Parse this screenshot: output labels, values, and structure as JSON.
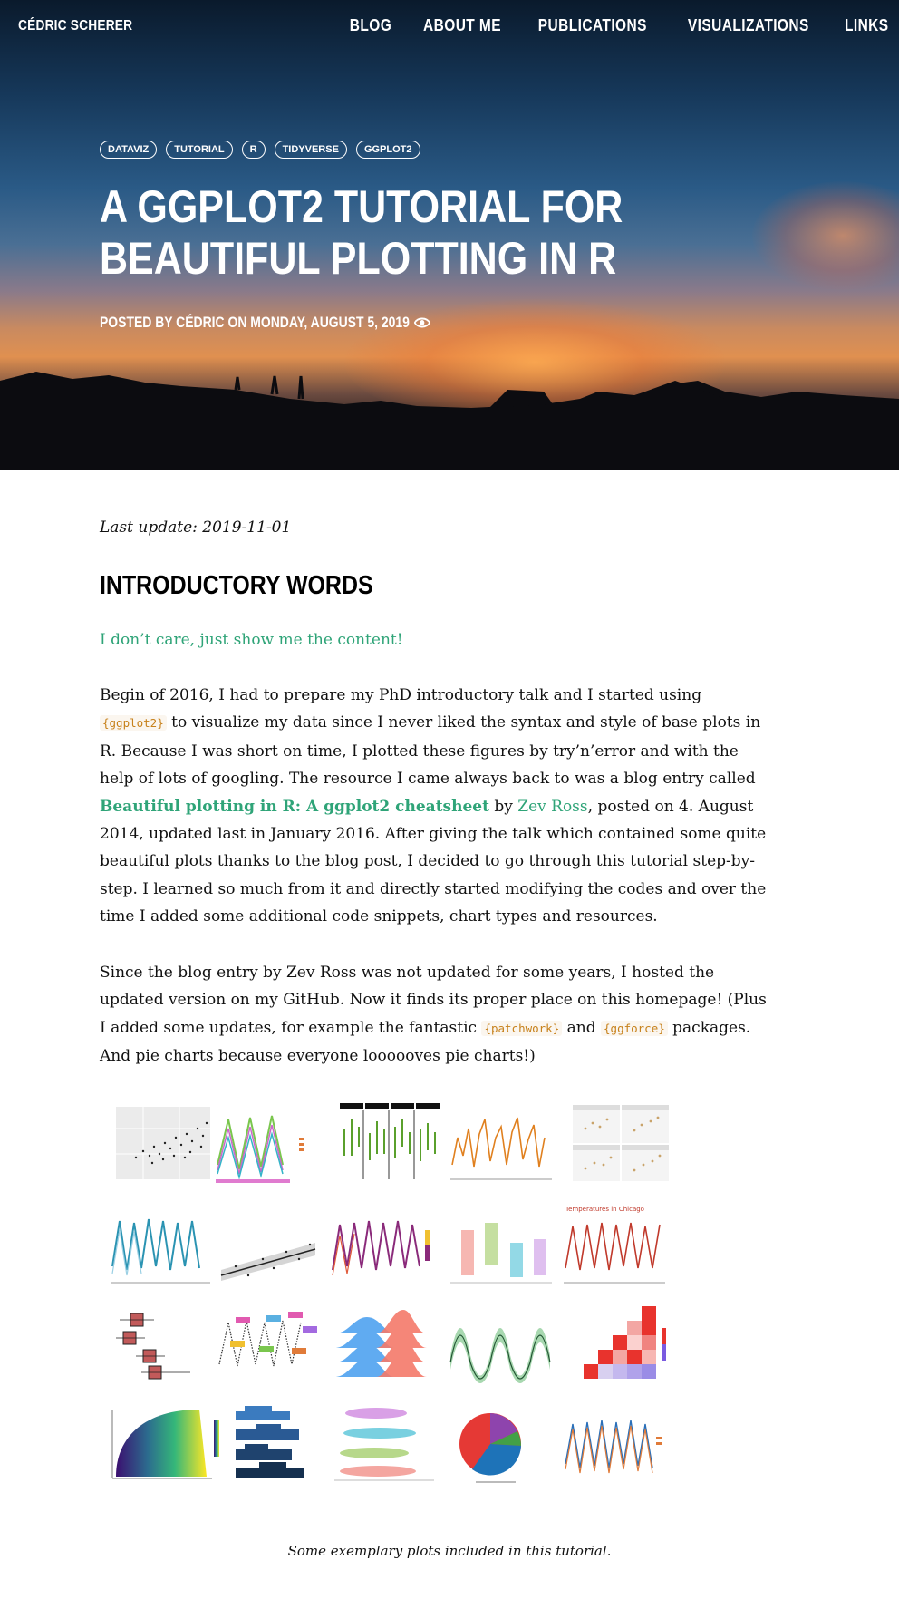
{
  "nav": {
    "brand": "CÉDRIC SCHERER",
    "items": [
      "BLOG",
      "ABOUT ME",
      "PUBLICATIONS",
      "VISUALIZATIONS",
      "LINKS"
    ]
  },
  "post": {
    "tags": [
      "DATAVIZ",
      "TUTORIAL",
      "R",
      "TIDYVERSE",
      "GGPLOT2"
    ],
    "title": "A GGPLOT2 TUTORIAL FOR BEAUTIFUL PLOTTING IN R",
    "meta": "POSTED BY CÉDRIC ON MONDAY, AUGUST 5, 2019",
    "views_icon": "eye-icon"
  },
  "content": {
    "update": "Last update: 2019-11-01",
    "heading": "INTRODUCTORY WORDS",
    "skip_link": "I don’t care, just show me the content!",
    "p1": {
      "t1": "Begin of 2016, I had to prepare my PhD introductory talk and I started using ",
      "code1": "{ggplot2}",
      "t2": " to visualize my data since I never liked the syntax and style of base plots in R. Because I was short on time, I plotted these figures by try’n’error and with the help of lots of googling. The resource I came always back to was a blog entry called ",
      "link1": "Beautiful plotting in R: A ggplot2 cheatsheet",
      "t3": " by ",
      "link2": "Zev Ross",
      "t4": ", posted on 4. August 2014, updated last in January 2016. After giving the talk which contained some quite beautiful plots thanks to the blog post, I decided to go through this tutorial step-by-step. I learned so much from it and directly started modifying the codes and over the time I added some additional code snippets, chart types and resources."
    },
    "p2": {
      "t1": "Since the blog entry by Zev Ross was not updated for some years, I hosted the updated version on my GitHub. Now it finds its proper place on this homepage! (Plus I added some updates, for example the fantastic ",
      "code1": "{patchwork}",
      "t2": " and ",
      "code2": "{ggforce}",
      "t3": " packages. And pie charts because everyone loooooves pie charts!)"
    },
    "caption": "Some exemplary plots included in this tutorial.",
    "chart_label": "Temperatures in Chicago"
  },
  "colors": {
    "accent": "#2fa478",
    "code": "#c7811b",
    "text": "#111111"
  }
}
